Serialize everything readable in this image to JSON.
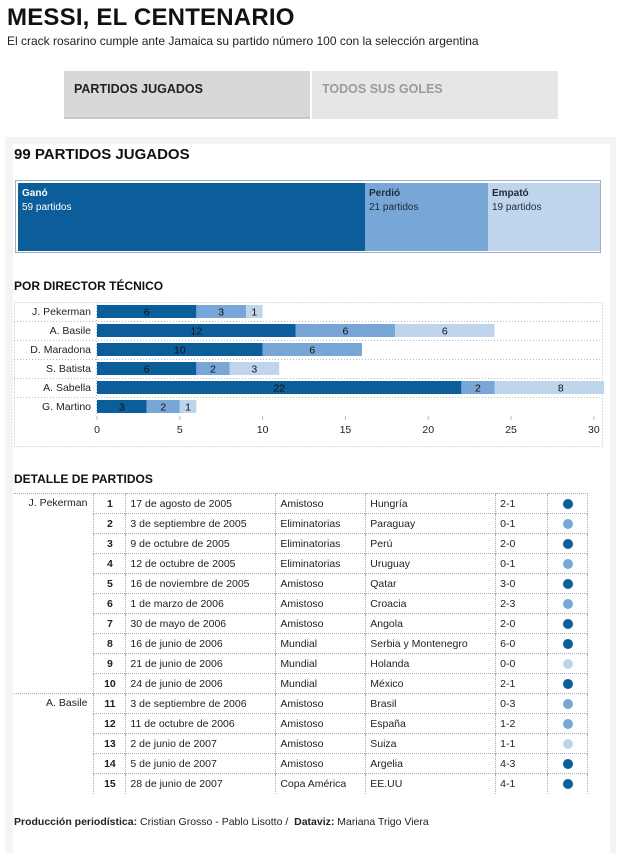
{
  "header": {
    "title": "MESSI, EL CENTENARIO",
    "subtitle": "El crack rosarino cumple ante Jamaica su partido número 100 con la selección argentina"
  },
  "tabs": [
    {
      "label": "PARTIDOS JUGADOS",
      "active": true
    },
    {
      "label": "TODOS SUS GOLES",
      "active": false
    }
  ],
  "summary": {
    "heading": "99 PARTIDOS JUGADOS",
    "segments": [
      {
        "key": "gano",
        "label": "Ganó",
        "count_text": "59 partidos",
        "value": 59,
        "color": "#0b5e99"
      },
      {
        "key": "perdio",
        "label": "Perdió",
        "count_text": "21 partidos",
        "value": 21,
        "color": "#78a6d6"
      },
      {
        "key": "empato",
        "label": "Empató",
        "count_text": "19 partidos",
        "value": 19,
        "color": "#bed5ec"
      }
    ]
  },
  "chart_section_title": "POR DIRECTOR TÉCNICO",
  "chart_data": {
    "type": "bar",
    "orientation": "horizontal",
    "stacked": true,
    "title": "POR DIRECTOR TÉCNICO",
    "categories": [
      "J. Pekerman",
      "A. Basile",
      "D. Maradona",
      "S. Batista",
      "A. Sabella",
      "G. Martino"
    ],
    "series": [
      {
        "values": [
          6,
          12,
          10,
          6,
          22,
          3
        ],
        "color": "#0b5e99"
      },
      {
        "values": [
          3,
          6,
          6,
          2,
          2,
          2
        ],
        "color": "#78a6d6"
      },
      {
        "values": [
          1,
          6,
          0,
          3,
          8,
          1
        ],
        "color": "#bed5ec"
      }
    ],
    "xlim": [
      0,
      32
    ],
    "xticks": [
      "0",
      "5",
      "10",
      "15",
      "20",
      "25",
      "30"
    ],
    "xlabel": "",
    "ylabel": ""
  },
  "detail_section_title": "DETALLE DE PARTIDOS",
  "matches": [
    {
      "coach": "J. Pekerman",
      "num": "1",
      "date": "17 de agosto de 2005",
      "comp": "Amistoso",
      "rival": "Hungría",
      "score": "2-1",
      "result": "gano"
    },
    {
      "coach": "",
      "num": "2",
      "date": "3 de septiembre de 2005",
      "comp": "Eliminatorias",
      "rival": "Paraguay",
      "score": "0-1",
      "result": "perdio"
    },
    {
      "coach": "",
      "num": "3",
      "date": "9 de octubre de 2005",
      "comp": "Eliminatorias",
      "rival": "Perú",
      "score": "2-0",
      "result": "gano"
    },
    {
      "coach": "",
      "num": "4",
      "date": "12 de octubre de 2005",
      "comp": "Eliminatorias",
      "rival": "Uruguay",
      "score": "0-1",
      "result": "perdio"
    },
    {
      "coach": "",
      "num": "5",
      "date": "16 de noviembre de 2005",
      "comp": "Amistoso",
      "rival": "Qatar",
      "score": "3-0",
      "result": "gano"
    },
    {
      "coach": "",
      "num": "6",
      "date": "1 de marzo de 2006",
      "comp": "Amistoso",
      "rival": "Croacia",
      "score": "2-3",
      "result": "perdio"
    },
    {
      "coach": "",
      "num": "7",
      "date": "30 de mayo de 2006",
      "comp": "Amistoso",
      "rival": "Angola",
      "score": "2-0",
      "result": "gano"
    },
    {
      "coach": "",
      "num": "8",
      "date": "16 de junio de 2006",
      "comp": "Mundial",
      "rival": "Serbia y Montenegro",
      "score": "6-0",
      "result": "gano"
    },
    {
      "coach": "",
      "num": "9",
      "date": "21 de junio de 2006",
      "comp": "Mundial",
      "rival": "Holanda",
      "score": "0-0",
      "result": "empato"
    },
    {
      "coach": "",
      "num": "10",
      "date": "24 de junio de 2006",
      "comp": "Mundial",
      "rival": "México",
      "score": "2-1",
      "result": "gano"
    },
    {
      "coach": "A. Basile",
      "num": "11",
      "date": "3 de septiembre de 2006",
      "comp": "Amistoso",
      "rival": "Brasil",
      "score": "0-3",
      "result": "perdio"
    },
    {
      "coach": "",
      "num": "12",
      "date": "11 de octubre de 2006",
      "comp": "Amistoso",
      "rival": "España",
      "score": "1-2",
      "result": "perdio"
    },
    {
      "coach": "",
      "num": "13",
      "date": "2 de junio de 2007",
      "comp": "Amistoso",
      "rival": "Suiza",
      "score": "1-1",
      "result": "empato"
    },
    {
      "coach": "",
      "num": "14",
      "date": "5 de junio de 2007",
      "comp": "Amistoso",
      "rival": "Argelia",
      "score": "4-3",
      "result": "gano"
    },
    {
      "coach": "",
      "num": "15",
      "date": "28 de junio de 2007",
      "comp": "Copa América",
      "rival": "EE.UU",
      "score": "4-1",
      "result": "gano"
    }
  ],
  "result_colors": {
    "gano": "#0b5e99",
    "perdio": "#78a6d6",
    "empato": "#bed5ec"
  },
  "footer": {
    "prod_label": "Producción periodística:",
    "prod_names": "Cristian Grosso - Pablo Lisotto /",
    "dataviz_label": "Dataviz:",
    "dataviz_names": "Mariana Trigo Viera"
  }
}
